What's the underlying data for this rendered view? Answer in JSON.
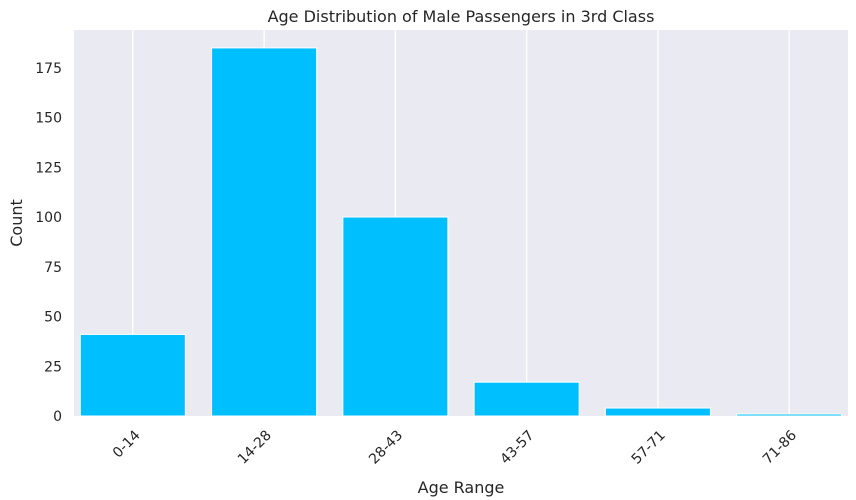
{
  "chart_data": {
    "type": "bar",
    "title": "Age Distribution of Male Passengers in 3rd Class",
    "xlabel": "Age Range",
    "ylabel": "Count",
    "categories": [
      "0-14",
      "14-28",
      "28-43",
      "43-57",
      "57-71",
      "71-86"
    ],
    "values": [
      41,
      185,
      100,
      17,
      4,
      1
    ],
    "ylim": [
      0,
      194
    ],
    "yticks": [
      0,
      25,
      50,
      75,
      100,
      125,
      150,
      175
    ],
    "x_tick_rotation": 45,
    "grid": "vertical",
    "colors": {
      "bar": "#00BFFF",
      "plot_background": "#EAEAF2",
      "grid": "#FFFFFF",
      "text": "#262626"
    }
  }
}
